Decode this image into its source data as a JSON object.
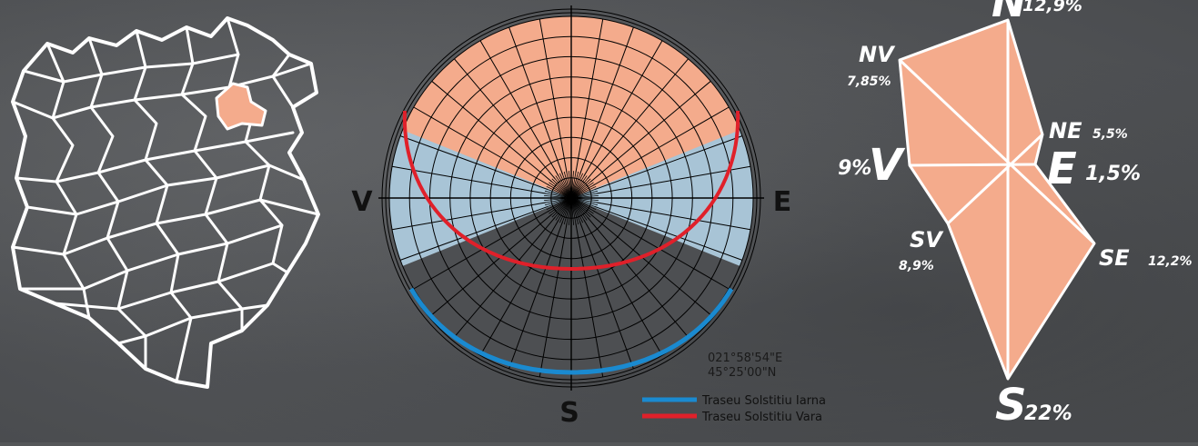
{
  "sundial": {
    "cardinals": {
      "west": "V",
      "east": "E",
      "south": "S"
    },
    "coordinates": {
      "longitude": "021°58'54\"E",
      "latitude": "45°25'00\"N"
    },
    "legend": [
      {
        "label": "Traseu Solstitiu Iarna",
        "color": "#1a8ad0"
      },
      {
        "label": "Traseu Solstitiu Vara",
        "color": "#e0202a"
      }
    ],
    "colors": {
      "north_sector": "#f4ab8c",
      "side_sectors": "#a8c4d6",
      "south_sector": "#4d4f52"
    }
  },
  "wind_rose": {
    "color": "#f4ab8c",
    "directions": [
      {
        "id": "N",
        "label": "N",
        "pct": "12,9%"
      },
      {
        "id": "NE",
        "label": "NE",
        "pct": "5,5%"
      },
      {
        "id": "E",
        "label": "E",
        "pct": "1,5%"
      },
      {
        "id": "SE",
        "label": "SE",
        "pct": "12,2%"
      },
      {
        "id": "S",
        "label": "S",
        "pct": "22%"
      },
      {
        "id": "SV",
        "label": "SV",
        "pct": "8,9%"
      },
      {
        "id": "V",
        "label": "V",
        "pct": "9%"
      },
      {
        "id": "NV",
        "label": "NV",
        "pct": "7,85%"
      }
    ]
  },
  "map": {
    "highlight_color": "#f4ab8c"
  }
}
